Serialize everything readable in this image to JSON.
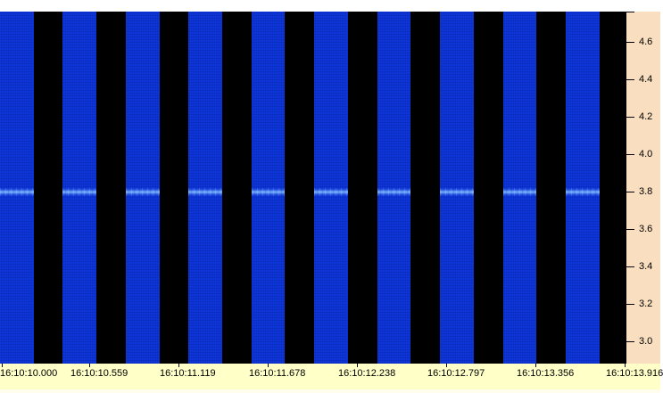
{
  "chart_data": {
    "type": "heatmap",
    "subtype": "spectrogram-waterfall",
    "title": "",
    "xlabel": "",
    "ylabel": "",
    "grid": false,
    "legend": false,
    "x_axis": {
      "xlim_s": [
        0,
        3.927
      ],
      "ticks": [
        {
          "label": "16:10:10.000",
          "t_s": 0.0
        },
        {
          "label": "16:10:10.559",
          "t_s": 0.559
        },
        {
          "label": "16:10:11.119",
          "t_s": 1.119
        },
        {
          "label": "16:10:11.678",
          "t_s": 1.678
        },
        {
          "label": "16:10:12.238",
          "t_s": 2.238
        },
        {
          "label": "16:10:12.797",
          "t_s": 2.797
        },
        {
          "label": "16:10:13.356",
          "t_s": 3.356
        },
        {
          "label": "16:10:13.916",
          "t_s": 3.916
        }
      ]
    },
    "y_axis": {
      "ylim": [
        2.881,
        4.762
      ],
      "tick_values": [
        4.6,
        4.4,
        4.2,
        4.0,
        3.8,
        3.6,
        3.4,
        3.2,
        3.0
      ],
      "tick_step": 0.2,
      "top_edge_tick": true
    },
    "bursts": {
      "description": "vertical blue signal-on columns separated by black signal-off gaps",
      "starts_s": [
        0.0,
        0.394,
        0.789,
        1.183,
        1.577,
        1.971,
        2.366,
        2.76,
        3.154,
        3.548
      ],
      "duration_s": 0.21
    },
    "tone_line": {
      "value": 3.8,
      "only_during_bursts": true,
      "description": "bright continuous tone visible inside each burst"
    }
  },
  "colors": {
    "background": "#ffffff",
    "plot_background": "#000000",
    "burst_blue": "#0a31d3",
    "tone_bright": "#7db9ff",
    "right_panel_peach": "#f9debf",
    "bottom_band_yellow": "#ffffc8",
    "bottom_strip": "#fffdee",
    "tick_color": "#000000",
    "label_color": "#000000"
  }
}
